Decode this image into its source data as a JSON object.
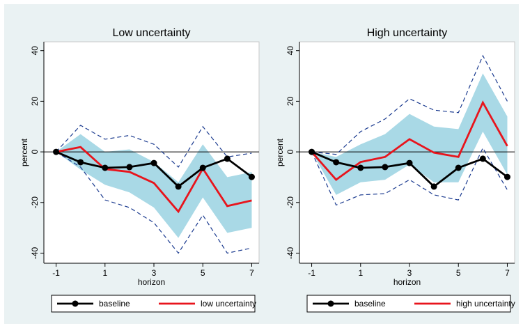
{
  "chart_data": [
    {
      "type": "line",
      "title": "Low uncertainty",
      "x_label": "horizon",
      "y_label": "percent",
      "x": [
        -1,
        0,
        1,
        2,
        3,
        4,
        5,
        6,
        7
      ],
      "xlim": [
        -1.5,
        7.3
      ],
      "ylim": [
        -44,
        43.5
      ],
      "xticks": [
        -1,
        1,
        3,
        5,
        7
      ],
      "yticks": [
        -40,
        -20,
        0,
        20,
        40
      ],
      "zero_line": true,
      "legend": "bottom",
      "band": {
        "color": "#a9d9e6",
        "upper": [
          0,
          7,
          0,
          1,
          -4,
          -12,
          3,
          -10,
          -8
        ],
        "lower": [
          0,
          -7,
          -13,
          -16,
          -22,
          -34,
          -18,
          -32,
          -30
        ]
      },
      "dashed": {
        "color": "#1a3a8f",
        "upper": [
          0,
          10.5,
          5,
          6.5,
          3,
          -6,
          10,
          -2,
          -0.5
        ],
        "lower": [
          0,
          -6,
          -19,
          -22,
          -28,
          -40,
          -25,
          -40,
          -38
        ]
      },
      "series": [
        {
          "name": "baseline",
          "color": "#000000",
          "markers": true,
          "values": [
            0,
            -4.1,
            -6.3,
            -6,
            -4.4,
            -13.7,
            -6.3,
            -2.7,
            -9.9
          ]
        },
        {
          "name": "low uncertainty",
          "color": "#e8141c",
          "markers": false,
          "values": [
            0,
            1.9,
            -6.8,
            -7.9,
            -12.3,
            -23.6,
            -6.6,
            -21.4,
            -19.2
          ]
        }
      ]
    },
    {
      "type": "line",
      "title": "High uncertainty",
      "x_label": "horizon",
      "y_label": "percent",
      "x": [
        -1,
        0,
        1,
        2,
        3,
        4,
        5,
        6,
        7
      ],
      "xlim": [
        -1.5,
        7.3
      ],
      "ylim": [
        -44,
        43.5
      ],
      "xticks": [
        -1,
        1,
        3,
        5,
        7
      ],
      "yticks": [
        -40,
        -20,
        0,
        20,
        40
      ],
      "zero_line": true,
      "legend": "bottom",
      "band": {
        "color": "#a9d9e6",
        "upper": [
          0,
          -2,
          3,
          7,
          15,
          10,
          9,
          31,
          14
        ],
        "lower": [
          0,
          -17,
          -12,
          -11,
          -5,
          -12,
          -12,
          8,
          -9
        ]
      },
      "dashed": {
        "color": "#1a3a8f",
        "upper": [
          0,
          -1,
          8,
          13,
          21,
          16.5,
          15.5,
          38,
          20
        ],
        "lower": [
          0,
          -21,
          -17,
          -16.5,
          -11,
          -17,
          -19,
          1.5,
          -15
        ]
      },
      "series": [
        {
          "name": "baseline",
          "color": "#000000",
          "markers": true,
          "values": [
            0,
            -4.1,
            -6.3,
            -6,
            -4.4,
            -13.7,
            -6.3,
            -2.7,
            -9.9
          ]
        },
        {
          "name": "high uncertainty",
          "color": "#e8141c",
          "markers": false,
          "values": [
            0,
            -11,
            -4,
            -2,
            5,
            -0.3,
            -2,
            19.5,
            2.3
          ]
        }
      ]
    }
  ]
}
